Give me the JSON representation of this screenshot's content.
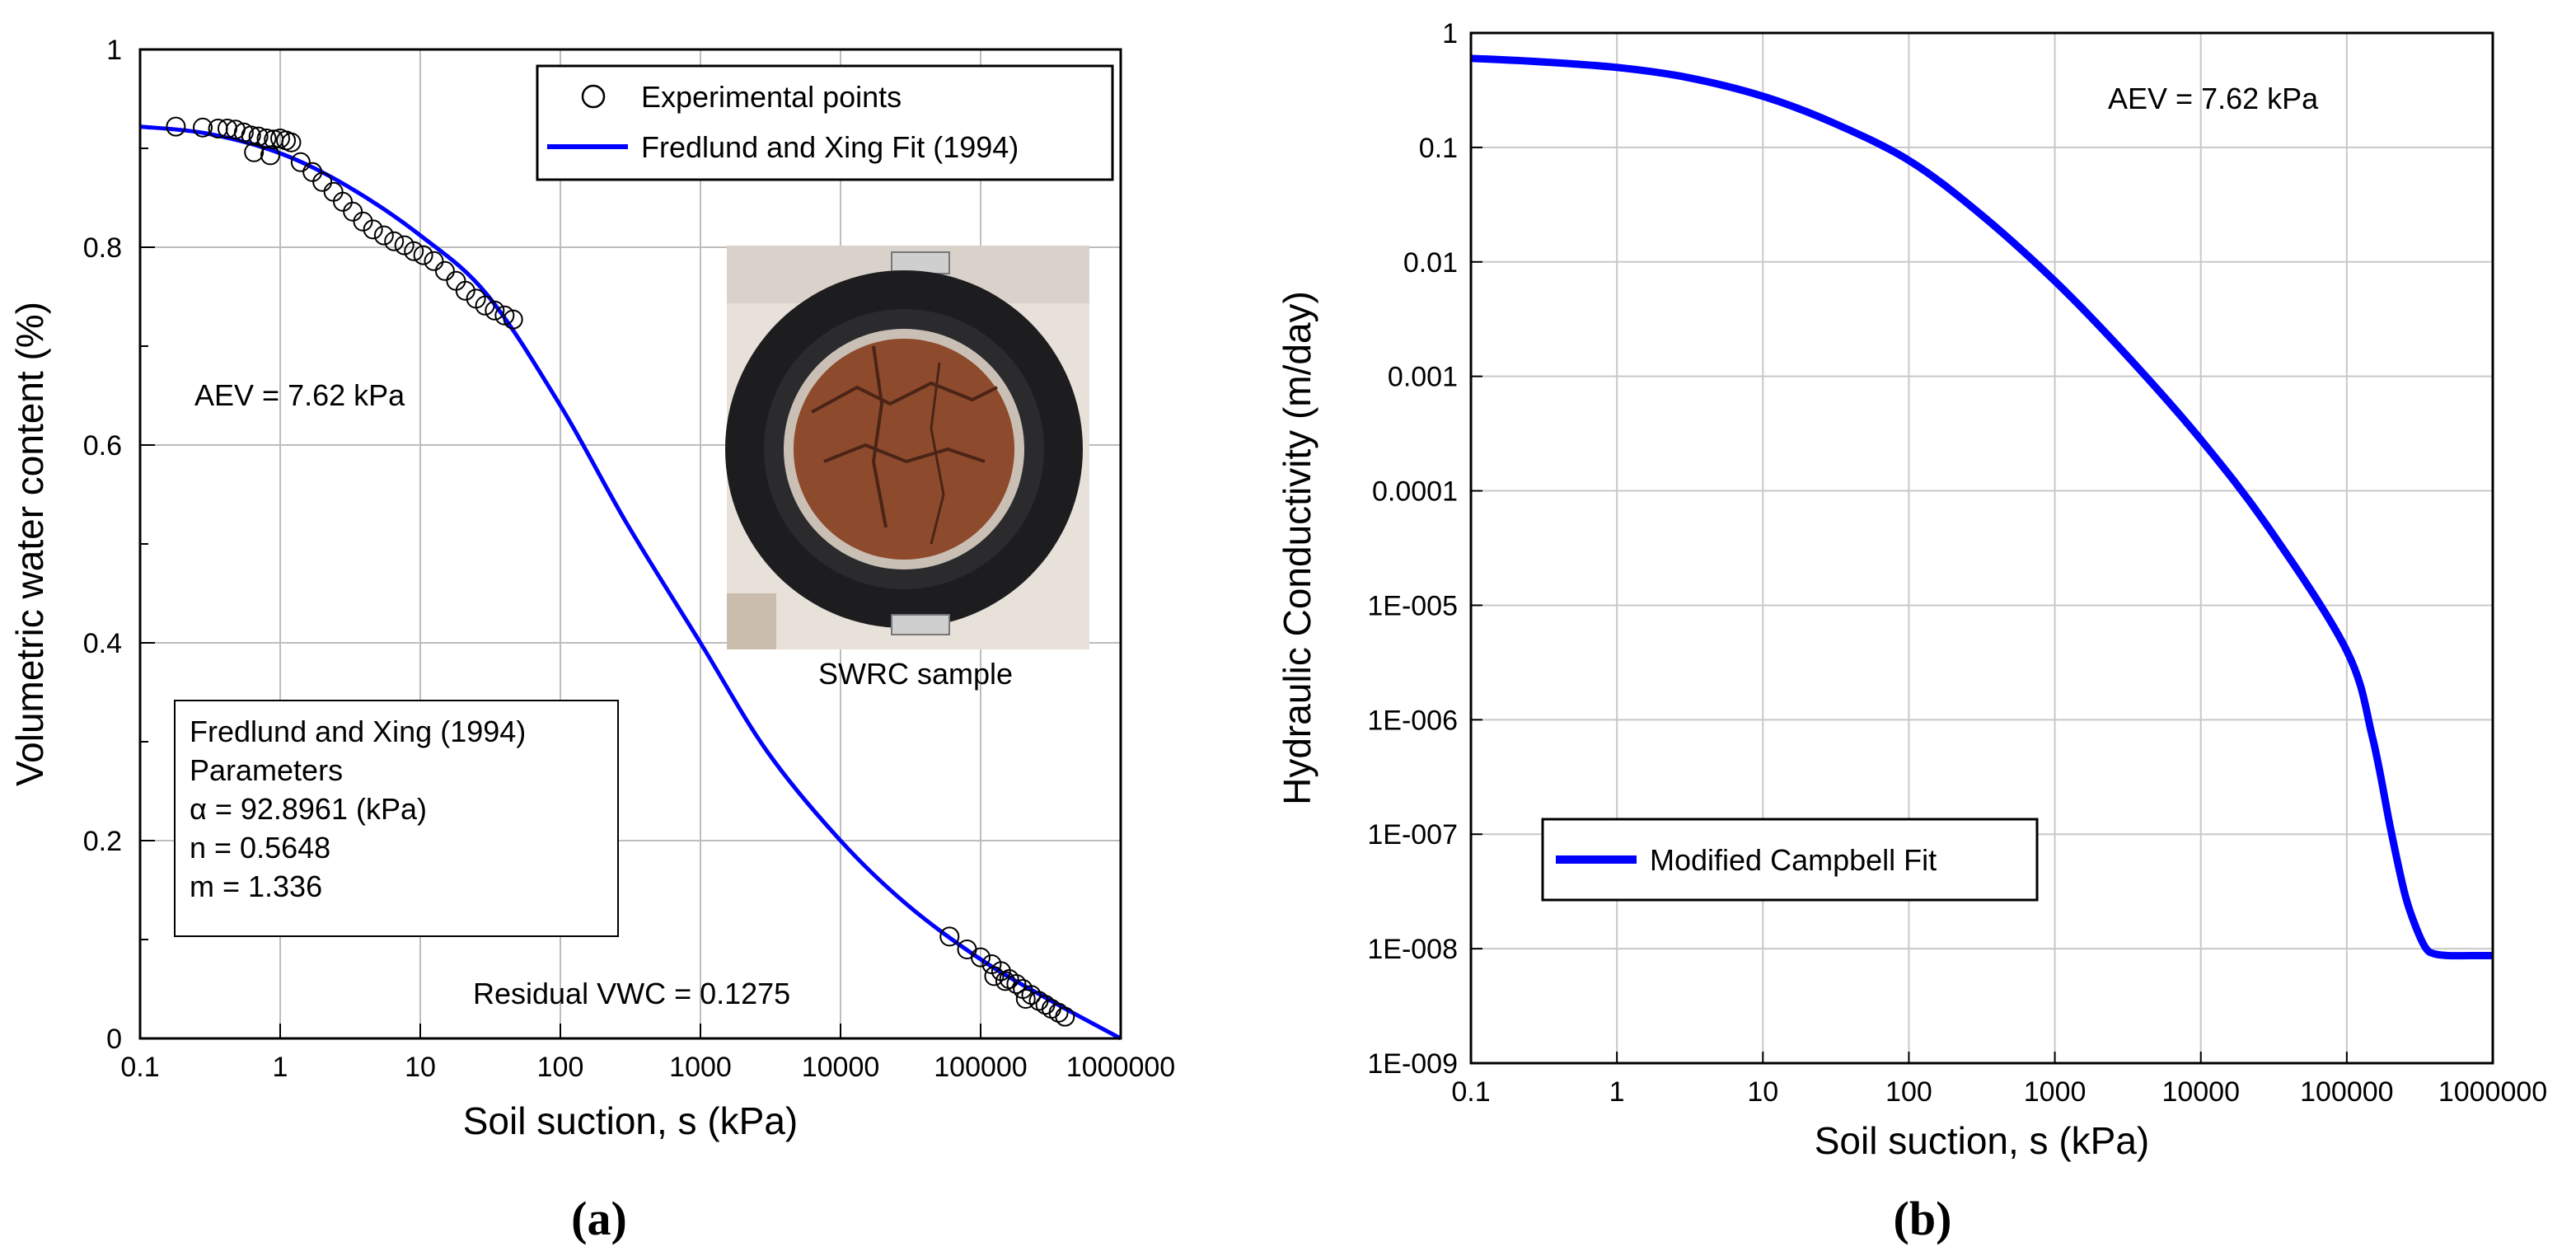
{
  "chart_data": [
    {
      "type": "scatter",
      "panel_label": "(a)",
      "x_scale": "log",
      "xlim": [
        0.1,
        1000000
      ],
      "ylim": [
        0,
        1
      ],
      "xlabel": "Soil suction, s (kPa)",
      "ylabel": "Volumetric water content (%)",
      "x_ticks": [
        "0.1",
        "1",
        "10",
        "100",
        "1000",
        "10000",
        "100000",
        "1000000"
      ],
      "y_ticks": [
        "0",
        "0.2",
        "0.4",
        "0.6",
        "0.8",
        "1"
      ],
      "legend": {
        "placement": "top-right",
        "points_label": "Experimental points",
        "fit_label": "Fredlund and Xing Fit (1994)"
      },
      "annotations": {
        "aev": "AEV = 7.62 kPa",
        "residual": "Residual VWC = 0.1275",
        "photo_caption": "SWRC sample",
        "params_title": "Fredlund and Xing (1994)",
        "params_subtitle": "Parameters",
        "alpha": "α = 92.8961 (kPa)",
        "n": "n =  0.5648",
        "m": "m = 1.336"
      },
      "fit_curve": {
        "name": "Fredlund and Xing Fit (1994)",
        "color": "#0000ff",
        "x": [
          0.1,
          0.3,
          1,
          3,
          10,
          30,
          100,
          300,
          1000,
          3000,
          10000,
          30000,
          100000,
          300000,
          1000000
        ],
        "y": [
          0.922,
          0.915,
          0.895,
          0.862,
          0.812,
          0.752,
          0.64,
          0.52,
          0.4,
          0.29,
          0.2,
          0.135,
          0.08,
          0.04,
          0.0
        ]
      },
      "experimental_points": {
        "name": "Experimental points",
        "x": [
          0.18,
          0.28,
          0.36,
          0.42,
          0.48,
          0.55,
          0.62,
          0.7,
          0.8,
          0.9,
          1.0,
          1.1,
          1.2,
          0.65,
          0.85,
          1.4,
          1.7,
          2.0,
          2.4,
          2.8,
          3.3,
          3.9,
          4.6,
          5.5,
          6.5,
          7.7,
          9.0,
          10.5,
          12.5,
          15,
          18,
          21,
          25,
          29,
          34,
          40,
          46,
          60000,
          80000,
          100000,
          120000,
          140000,
          160000,
          180000,
          200000,
          230000,
          260000,
          290000,
          320000,
          360000,
          400000,
          125000,
          150000,
          210000
        ],
        "y": [
          0.922,
          0.921,
          0.92,
          0.92,
          0.919,
          0.916,
          0.913,
          0.912,
          0.91,
          0.909,
          0.91,
          0.908,
          0.906,
          0.896,
          0.893,
          0.886,
          0.876,
          0.866,
          0.856,
          0.846,
          0.836,
          0.826,
          0.818,
          0.812,
          0.806,
          0.802,
          0.796,
          0.792,
          0.786,
          0.776,
          0.766,
          0.756,
          0.748,
          0.741,
          0.736,
          0.731,
          0.727,
          0.103,
          0.09,
          0.082,
          0.075,
          0.068,
          0.06,
          0.055,
          0.05,
          0.044,
          0.038,
          0.034,
          0.03,
          0.026,
          0.022,
          0.063,
          0.058,
          0.04
        ]
      }
    },
    {
      "type": "line",
      "panel_label": "(b)",
      "x_scale": "log",
      "y_scale": "log",
      "xlim": [
        0.1,
        1000000
      ],
      "ylim": [
        1e-09,
        1
      ],
      "xlabel": "Soil suction, s (kPa)",
      "ylabel": "Hydraulic Conductivity (m/day)",
      "x_ticks": [
        "0.1",
        "1",
        "10",
        "100",
        "1000",
        "10000",
        "100000",
        "1000000"
      ],
      "y_ticks": [
        "1E-009",
        "1E-008",
        "1E-007",
        "1E-006",
        "1E-005",
        "0.0001",
        "0.001",
        "0.01",
        "0.1",
        "1"
      ],
      "legend": {
        "placement": "bottom-left",
        "label": "Modified Campbell Fit"
      },
      "annotations": {
        "aev": "AEV = 7.62 kPa"
      },
      "series": [
        {
          "name": "Modified Campbell Fit",
          "color": "#0000ff",
          "x": [
            0.1,
            0.3,
            1,
            3,
            10,
            30,
            100,
            300,
            1000,
            3000,
            10000,
            30000,
            100000,
            150000,
            200000,
            250000,
            300000,
            350000,
            400000,
            500000,
            700000,
            1000000
          ],
          "y": [
            0.6,
            0.56,
            0.5,
            0.41,
            0.28,
            0.165,
            0.077,
            0.027,
            0.0068,
            0.0016,
            0.00028,
            4.5e-05,
            4e-06,
            7e-07,
            1.1e-07,
            3e-08,
            1.5e-08,
            1e-08,
            9e-09,
            8.7e-09,
            8.7e-09,
            8.7e-09
          ]
        }
      ]
    }
  ]
}
